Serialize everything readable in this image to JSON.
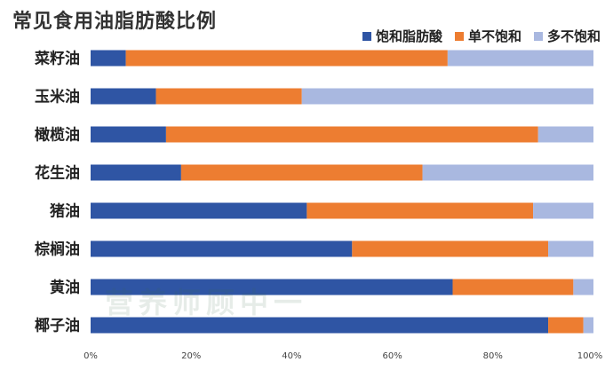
{
  "chart_data": {
    "type": "bar",
    "orientation": "horizontal-stacked-100",
    "title": "常见食用油脂肪酸比例",
    "categories": [
      "菜籽油",
      "玉米油",
      "橄榄油",
      "花生油",
      "猪油",
      "棕榈油",
      "黄油",
      "椰子油"
    ],
    "series": [
      {
        "name": "饱和脂肪酸",
        "color": "#2f55a4",
        "values": [
          7,
          13,
          15,
          18,
          43,
          52,
          72,
          91
        ]
      },
      {
        "name": "单不饱和",
        "color": "#ed7d31",
        "values": [
          64,
          29,
          74,
          48,
          45,
          39,
          24,
          7
        ]
      },
      {
        "name": "多不饱和",
        "color": "#a9b8e0",
        "values": [
          29,
          58,
          11,
          34,
          12,
          9,
          4,
          2
        ]
      }
    ],
    "xlim": [
      0,
      100
    ],
    "xticks": [
      "0%",
      "20%",
      "40%",
      "60%",
      "80%",
      "100%"
    ],
    "legend_position": "top-right",
    "grid": false
  },
  "watermark_text": "营养师顾中一"
}
